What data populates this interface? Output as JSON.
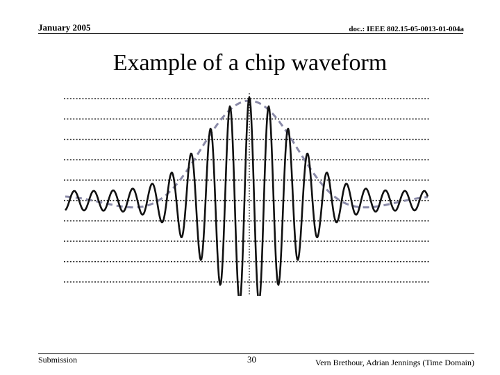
{
  "header": {
    "date": "January 2005",
    "doc_id": "doc.: IEEE 802.15-05-0013-01-004a"
  },
  "slide": {
    "title": "Example of a chip waveform"
  },
  "footer": {
    "submission": "Submission",
    "page_number": "30",
    "authors": "Vern Brethour, Adrian Jennings (Time Domain)"
  },
  "figure": {
    "gridline_count": 10,
    "waveform_color": "#111111",
    "envelope_color": "#8a8aa8",
    "grid_color": "#222222"
  }
}
